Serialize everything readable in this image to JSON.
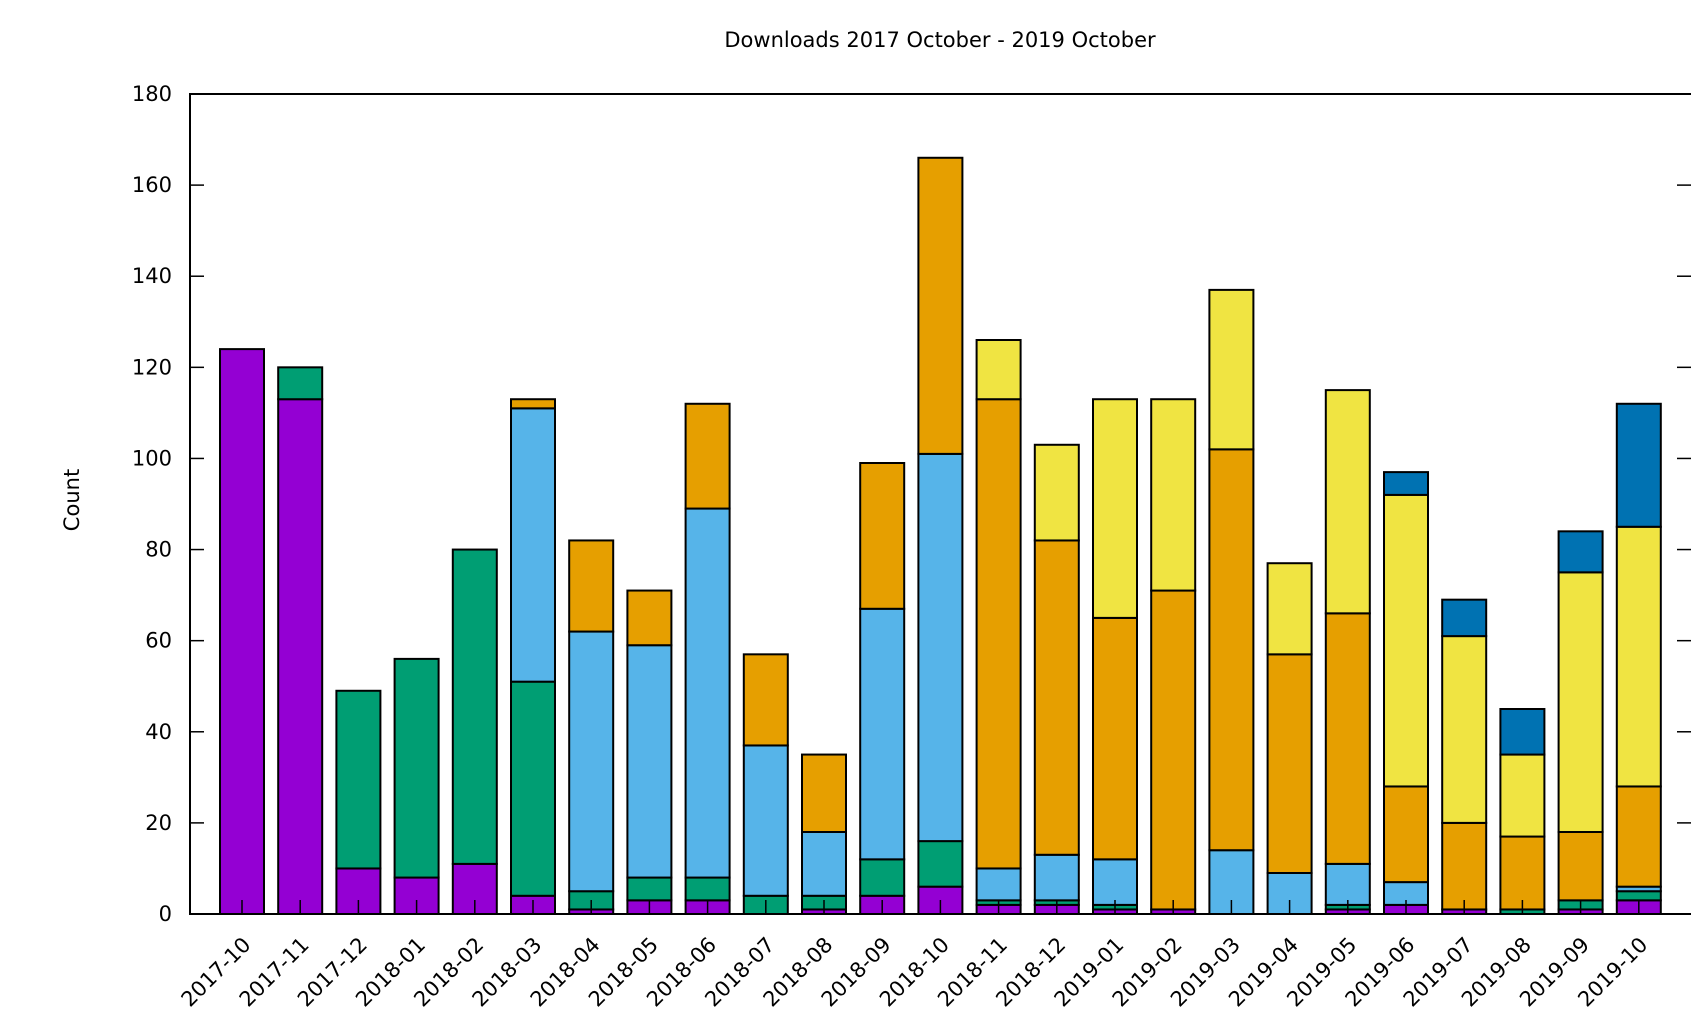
{
  "chart_data": {
    "type": "bar",
    "stacked": true,
    "title": "Downloads 2017 October - 2019 October",
    "xlabel": "",
    "ylabel": "Count",
    "ylim": [
      0,
      180
    ],
    "yticks": [
      "0",
      "20",
      "40",
      "60",
      "80",
      "100",
      "120",
      "140",
      "160",
      "180"
    ],
    "grid": false,
    "legend": "none",
    "categories": [
      "2017-10",
      "2017-11",
      "2017-12",
      "2018-01",
      "2018-02",
      "2018-03",
      "2018-04",
      "2018-05",
      "2018-06",
      "2018-07",
      "2018-08",
      "2018-09",
      "2018-10",
      "2018-11",
      "2018-12",
      "2019-01",
      "2019-02",
      "2019-03",
      "2019-04",
      "2019-05",
      "2019-06",
      "2019-07",
      "2019-08",
      "2019-09",
      "2019-10"
    ],
    "series": [
      {
        "color": "#9400d3",
        "values": [
          124,
          113,
          10,
          8,
          11,
          4,
          1,
          3,
          3,
          0,
          1,
          4,
          6,
          2,
          2,
          1,
          1,
          0,
          0,
          1,
          2,
          1,
          0,
          1,
          3
        ]
      },
      {
        "color": "#009e73",
        "values": [
          0,
          7,
          39,
          48,
          69,
          47,
          4,
          5,
          5,
          4,
          3,
          8,
          10,
          1,
          1,
          1,
          0,
          0,
          0,
          1,
          0,
          0,
          1,
          2,
          2
        ]
      },
      {
        "color": "#56b4e9",
        "values": [
          0,
          0,
          0,
          0,
          0,
          60,
          57,
          51,
          81,
          33,
          14,
          55,
          85,
          7,
          10,
          10,
          0,
          14,
          9,
          9,
          5,
          0,
          0,
          0,
          1
        ]
      },
      {
        "color": "#e69f00",
        "values": [
          0,
          0,
          0,
          0,
          0,
          2,
          20,
          12,
          23,
          20,
          17,
          32,
          65,
          103,
          69,
          53,
          70,
          88,
          48,
          55,
          21,
          19,
          16,
          15,
          22
        ]
      },
      {
        "color": "#f0e442",
        "values": [
          0,
          0,
          0,
          0,
          0,
          0,
          0,
          0,
          0,
          0,
          0,
          0,
          0,
          13,
          21,
          48,
          42,
          35,
          20,
          49,
          64,
          41,
          18,
          57,
          57
        ]
      },
      {
        "color": "#0072b2",
        "values": [
          0,
          0,
          0,
          0,
          0,
          0,
          0,
          0,
          0,
          0,
          0,
          0,
          0,
          0,
          0,
          0,
          0,
          0,
          0,
          0,
          5,
          8,
          10,
          9,
          27
        ]
      }
    ]
  }
}
